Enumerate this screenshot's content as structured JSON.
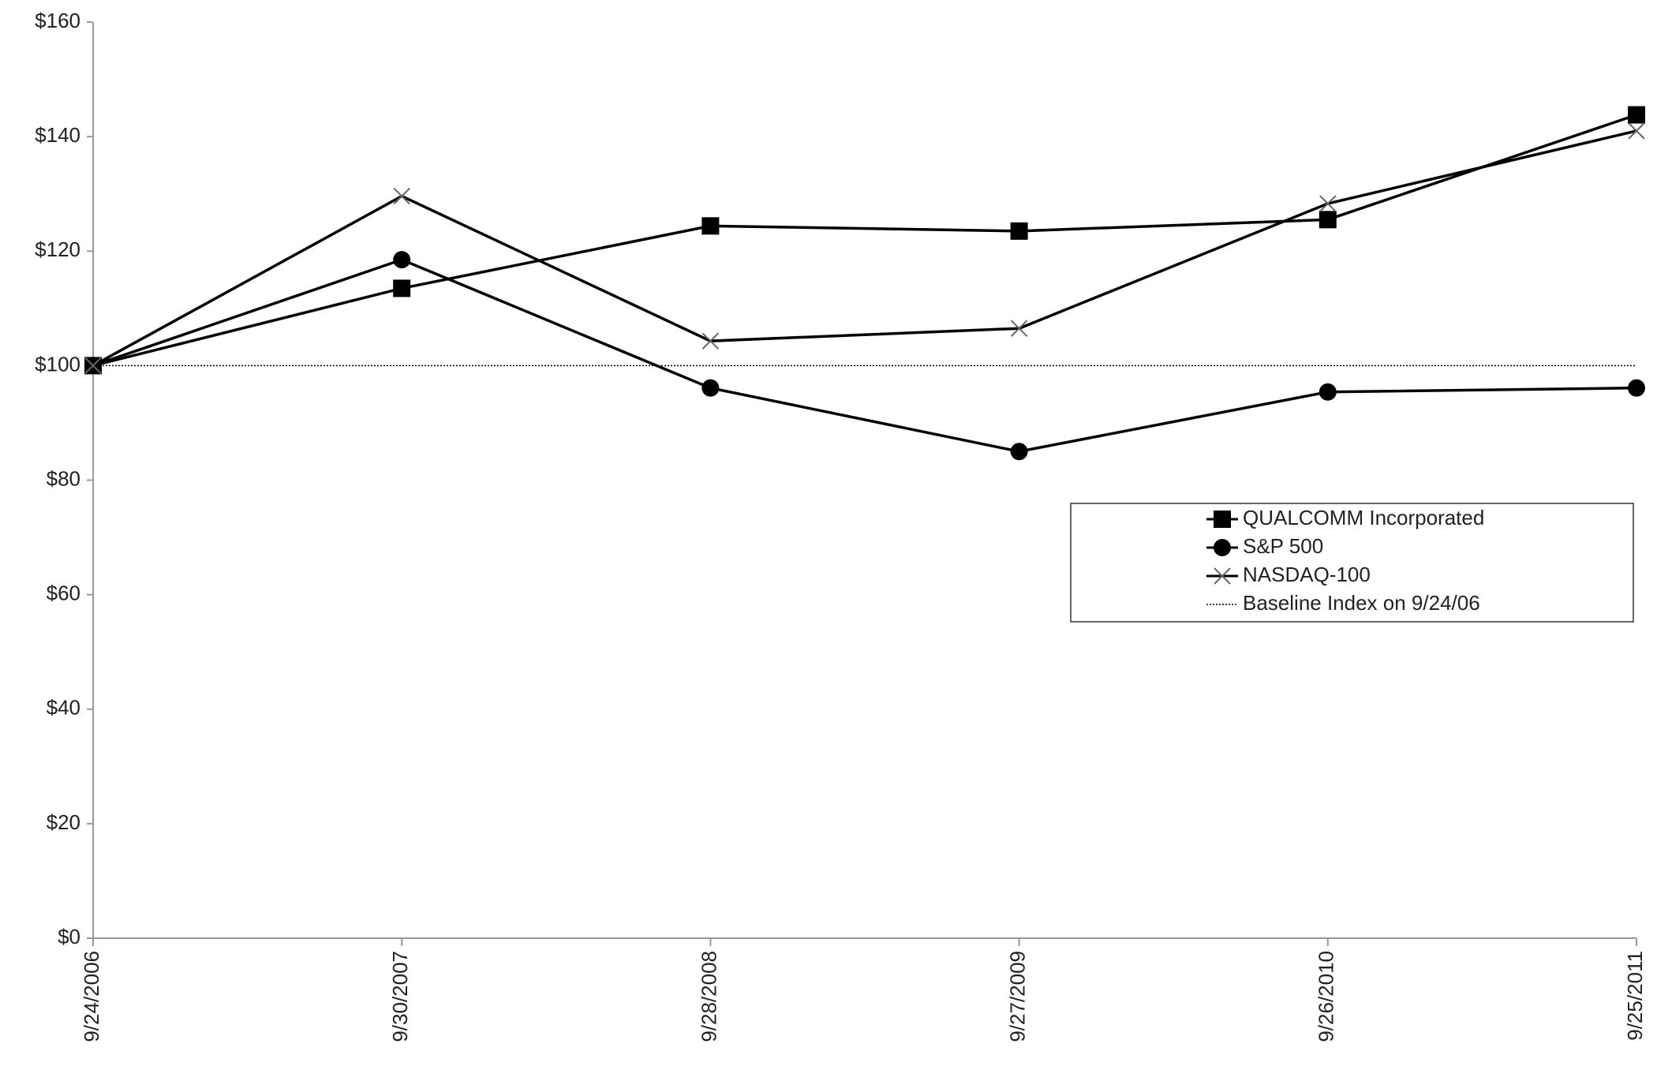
{
  "chart_data": {
    "type": "line",
    "categories": [
      "9/24/2006",
      "9/30/2007",
      "9/28/2008",
      "9/27/2009",
      "9/26/2010",
      "9/25/2011"
    ],
    "series": [
      {
        "name": "QUALCOMM Incorporated",
        "color": "#000000",
        "marker": "square",
        "dash": "solid",
        "values": [
          100,
          113.5,
          124.4,
          123.5,
          125.5,
          143.8
        ]
      },
      {
        "name": "S&P 500",
        "color": "#000000",
        "marker": "circle",
        "dash": "solid",
        "values": [
          100,
          118.5,
          96.1,
          85.0,
          95.4,
          96.1
        ]
      },
      {
        "name": "NASDAQ-100",
        "color": "#000000",
        "marker": "x",
        "dash": "solid",
        "values": [
          100,
          129.6,
          104.3,
          106.5,
          128.3,
          141.0
        ]
      },
      {
        "name": "Baseline Index on 9/24/06",
        "color": "#000000",
        "marker": "none",
        "dash": "dotted",
        "values": [
          100,
          100,
          100,
          100,
          100,
          100
        ]
      }
    ],
    "ylim": [
      0,
      160
    ],
    "yticks": [
      {
        "value": 0,
        "label": "$0"
      },
      {
        "value": 20,
        "label": "$20"
      },
      {
        "value": 40,
        "label": "$40"
      },
      {
        "value": 60,
        "label": "$60"
      },
      {
        "value": 80,
        "label": "$80"
      },
      {
        "value": 100,
        "label": "$100"
      },
      {
        "value": 120,
        "label": "$120"
      },
      {
        "value": 140,
        "label": "$140"
      },
      {
        "value": 160,
        "label": "$160"
      }
    ],
    "grid": false,
    "legend": "right"
  }
}
